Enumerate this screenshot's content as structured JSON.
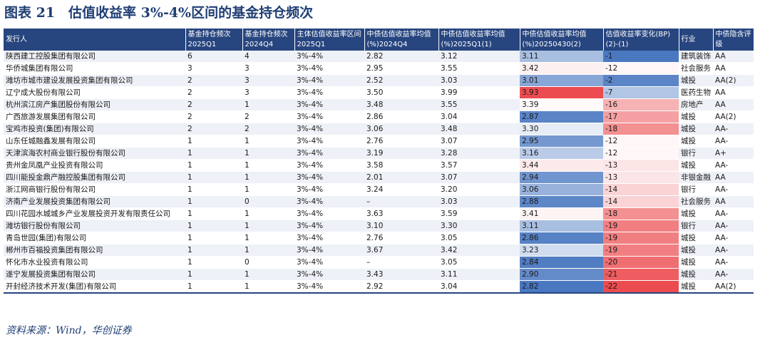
{
  "title": "图表 21　估值收益率 3%-4%区间的基金持仓频次",
  "source": "资料来源：Wind，华创证券",
  "colors": {
    "header_bg": "#27457f",
    "high": "#ec4c4f",
    "mid": "#ffffff",
    "low": "#4a78c0"
  },
  "table": {
    "headers": [
      "发行人",
      "基金持仓频次 2025Q1",
      "基金持仓频次2024Q4",
      "主体估值收益率区间2025Q1",
      "中债估值收益率均值(%)2024Q4",
      "中债估值收益率均值(%)2025Q1(1)",
      "中债估值收益率均值(%)20250430(2)",
      "估值收益率变化(BP)(2)-(1)",
      "行业",
      "中债隐含评级"
    ],
    "rows": [
      [
        "陕西建工控股集团有限公司",
        "6",
        "4",
        "3%-4%",
        "2.82",
        "3.12",
        "3.11",
        "-1",
        "建筑装饰",
        "AA"
      ],
      [
        "华侨城集团有限公司",
        "3",
        "3",
        "3%-4%",
        "2.95",
        "3.55",
        "3.42",
        "-12",
        "社会服务",
        "AA"
      ],
      [
        "潍坊市城市建设发展投资集团有限公司",
        "2",
        "3",
        "3%-4%",
        "2.52",
        "3.03",
        "3.01",
        "-2",
        "城投",
        "AA(2)"
      ],
      [
        "辽宁成大股份有限公司",
        "2",
        "3",
        "3%-4%",
        "3.50",
        "3.99",
        "3.93",
        "-7",
        "医药生物",
        "AA"
      ],
      [
        "杭州滨江房产集团股份有限公司",
        "2",
        "1",
        "3%-4%",
        "3.48",
        "3.55",
        "3.39",
        "-16",
        "房地产",
        "AA"
      ],
      [
        "广西旅游发展集团有限公司",
        "2",
        "2",
        "3%-4%",
        "2.86",
        "3.04",
        "2.87",
        "-17",
        "城投",
        "AA(2)"
      ],
      [
        "宝鸡市投资(集团)有限公司",
        "2",
        "2",
        "3%-4%",
        "3.06",
        "3.48",
        "3.30",
        "-18",
        "城投",
        "AA-"
      ],
      [
        "山东任城融鑫发展有限公司",
        "1",
        "1",
        "3%-4%",
        "2.76",
        "3.07",
        "2.95",
        "-12",
        "城投",
        "AA-"
      ],
      [
        "天津滨海农村商业银行股份有限公司",
        "1",
        "1",
        "3%-4%",
        "3.19",
        "3.28",
        "3.16",
        "-12",
        "银行",
        "A+"
      ],
      [
        "贵州金凤凰产业投资有限公司",
        "1",
        "1",
        "3%-4%",
        "3.58",
        "3.57",
        "3.44",
        "-13",
        "城投",
        "AA-"
      ],
      [
        "四川能投金鼎产融控股集团有限公司",
        "1",
        "1",
        "3%-4%",
        "2.01",
        "3.07",
        "2.94",
        "-13",
        "非银金融",
        "AA"
      ],
      [
        "浙江网商银行股份有限公司",
        "1",
        "1",
        "3%-4%",
        "3.24",
        "3.20",
        "3.06",
        "-14",
        "银行",
        "AA-"
      ],
      [
        "济南产业发展投资集团有限公司",
        "1",
        "0",
        "3%-4%",
        "–",
        "3.03",
        "2.88",
        "-14",
        "社会服务",
        "AA"
      ],
      [
        "四川花园水城城乡产业发展投资开发有限责任公司",
        "1",
        "1",
        "3%-4%",
        "3.63",
        "3.59",
        "3.41",
        "-18",
        "城投",
        "AA-"
      ],
      [
        "潍坊银行股份有限公司",
        "1",
        "1",
        "3%-4%",
        "3.10",
        "3.30",
        "3.11",
        "-19",
        "银行",
        "AA-"
      ],
      [
        "青岛世园(集团)有限公司",
        "1",
        "1",
        "3%-4%",
        "2.76",
        "3.05",
        "2.86",
        "-19",
        "城投",
        "AA-"
      ],
      [
        "郴州市百福投资集团有限公司",
        "1",
        "1",
        "3%-4%",
        "3.67",
        "3.42",
        "3.23",
        "-19",
        "城投",
        "AA-"
      ],
      [
        "怀化市水业投资有限公司",
        "1",
        "0",
        "3%-4%",
        "–",
        "3.05",
        "2.84",
        "-20",
        "城投",
        "AA-"
      ],
      [
        "遂宁发展投资集团有限公司",
        "1",
        "1",
        "3%-4%",
        "3.43",
        "3.11",
        "2.90",
        "-21",
        "城投",
        "AA-"
      ],
      [
        "开封经济技术开发(集团)有限公司",
        "1",
        "1",
        "3%-4%",
        "2.92",
        "3.04",
        "2.82",
        "-22",
        "城投",
        "AA(2)"
      ]
    ]
  }
}
